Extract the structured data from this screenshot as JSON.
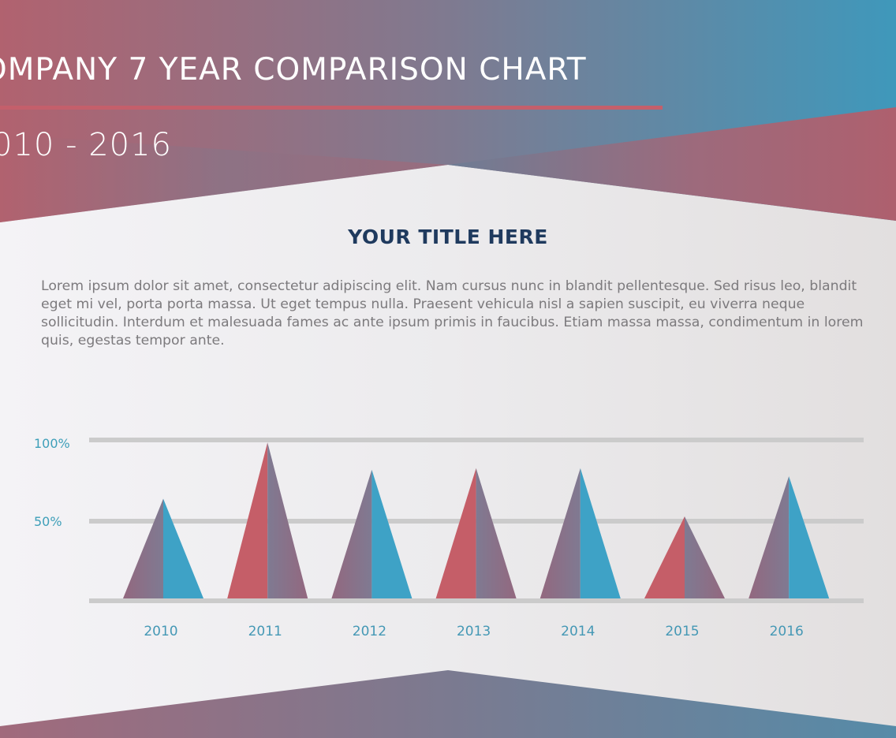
{
  "header": {
    "title": "OMPANY 7 YEAR COMPARISON CHART",
    "date_range": "010 - 2016"
  },
  "section": {
    "title": "YOUR TITLE HERE",
    "body": "Lorem ipsum dolor sit amet, consectetur adipiscing elit. Nam cursus nunc in blandit pellentesque. Sed risus leo, blandit eget mi vel, porta porta massa. Ut eget tempus nulla.  Praesent vehicula nisl a sapien suscipit, eu viverra neque sollicitudin. Interdum et malesuada fames ac ante ipsum primis in faucibus. Etiam massa massa, condimentum in lorem quis, egestas tempor ante."
  },
  "colors": {
    "red": "#c55e68",
    "purple": "#877186",
    "blue": "#3ea2c6",
    "gridline": "#cbcbcb",
    "axis_label": "#3e9fb9",
    "title_navy": "#1f3a5e",
    "body_gray": "#7c7a7d"
  },
  "chart_data": {
    "type": "bar",
    "subtype": "triangle",
    "title": "YOUR TITLE HERE",
    "xlabel": "",
    "ylabel": "",
    "ylim": [
      0,
      100
    ],
    "y_ticks": [
      "50%",
      "100%"
    ],
    "grid": true,
    "legend": null,
    "categories": [
      "2010",
      "2011",
      "2012",
      "2013",
      "2014",
      "2015",
      "2016"
    ],
    "values": [
      62,
      97,
      80,
      81,
      81,
      51,
      76
    ],
    "fill_style": [
      "purple-blue",
      "red-purple",
      "purple-blue",
      "red-purple",
      "purple-blue",
      "red-purple",
      "purple-blue"
    ]
  }
}
